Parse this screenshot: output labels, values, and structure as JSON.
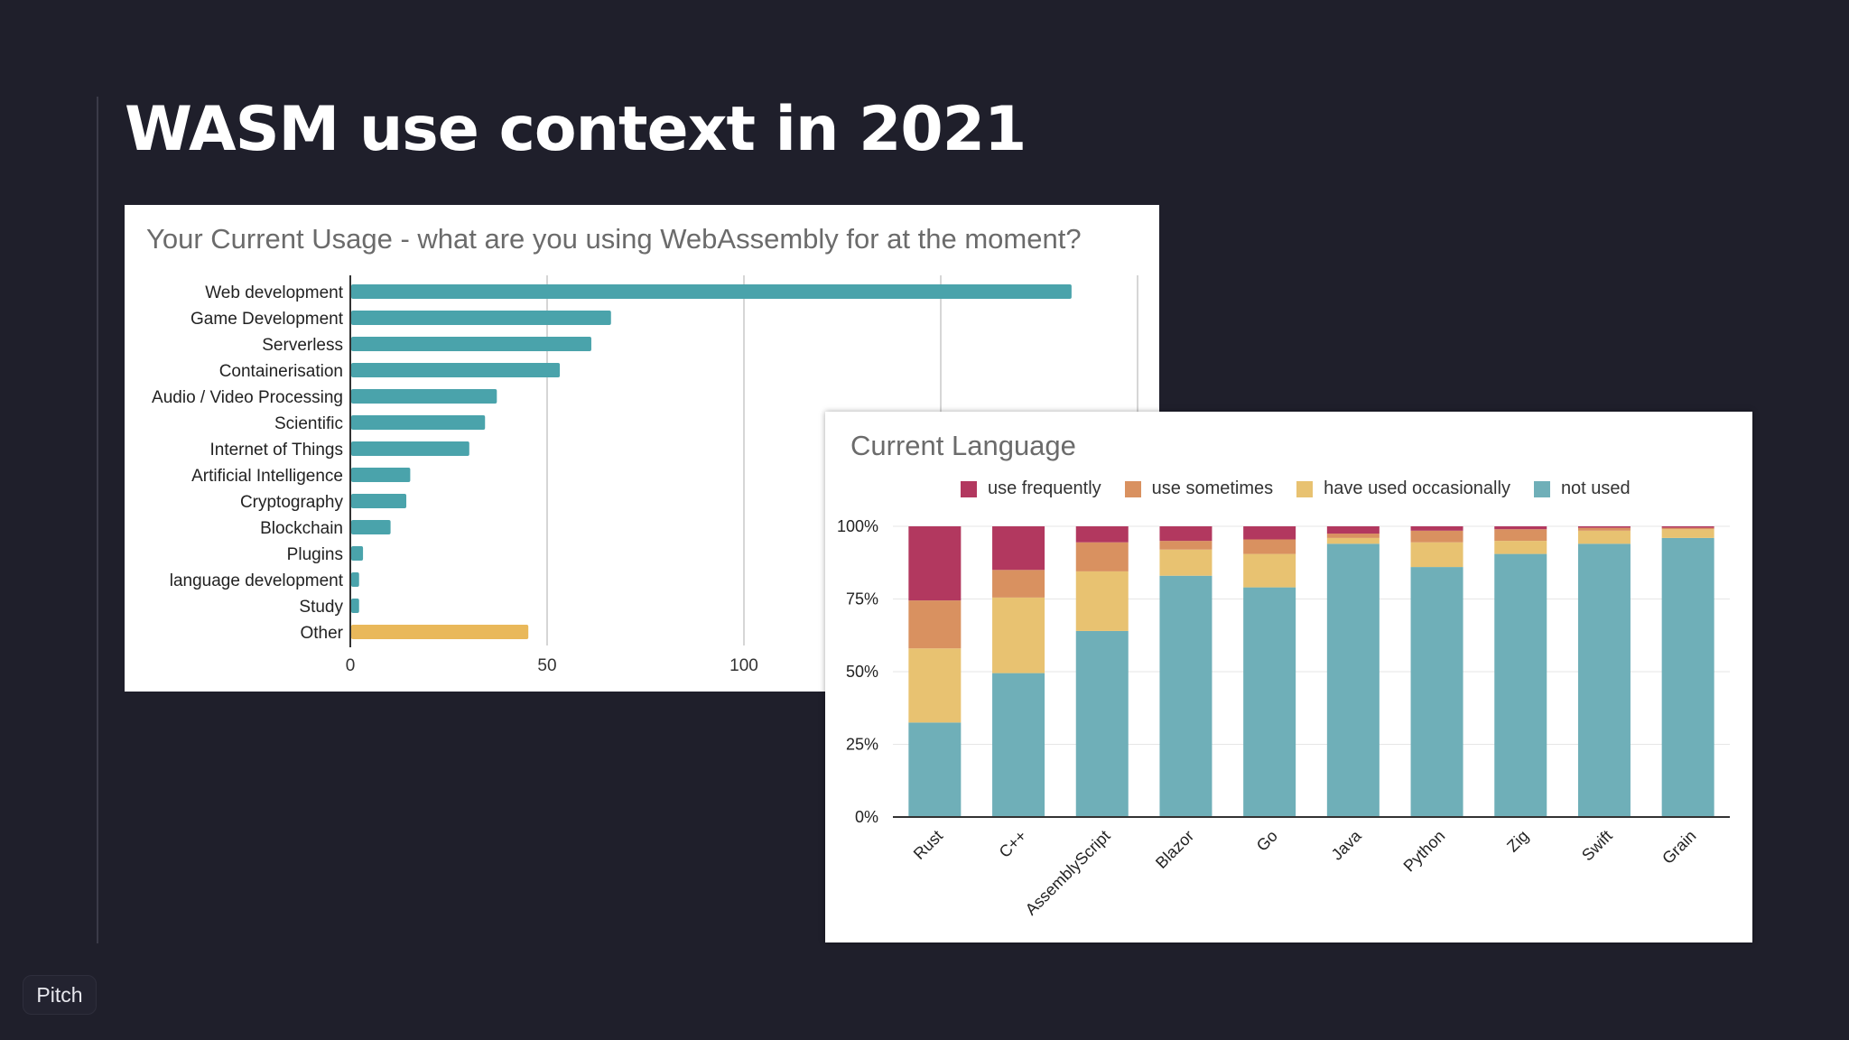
{
  "slide": {
    "title": "WASM use context in 2021",
    "logo": "Pitch"
  },
  "chart_data": [
    {
      "type": "bar",
      "orientation": "horizontal",
      "title": "Your Current Usage - what are you using WebAssembly for at the moment?",
      "categories": [
        "Web development",
        "Game Development",
        "Serverless",
        "Containerisation",
        "Audio / Video Processing",
        "Scientific",
        "Internet of Things",
        "Artificial Intelligence",
        "Cryptography",
        "Blockchain",
        "Plugins",
        "language development",
        "Study",
        "Other"
      ],
      "values": [
        183,
        66,
        61,
        53,
        37,
        34,
        30,
        15,
        14,
        10,
        3,
        2,
        2,
        45
      ],
      "bar_colors": [
        "#4aa3ab",
        "#4aa3ab",
        "#4aa3ab",
        "#4aa3ab",
        "#4aa3ab",
        "#4aa3ab",
        "#4aa3ab",
        "#4aa3ab",
        "#4aa3ab",
        "#4aa3ab",
        "#4aa3ab",
        "#4aa3ab",
        "#4aa3ab",
        "#e9b85a"
      ],
      "xticks": [
        0,
        50,
        100,
        150,
        200
      ],
      "xlim": [
        0,
        200
      ],
      "grid": true
    },
    {
      "type": "bar",
      "stacked": true,
      "title": "Current Language",
      "categories": [
        "Rust",
        "C++",
        "AssemblyScript",
        "Blazor",
        "Go",
        "Java",
        "Python",
        "Zig",
        "Swift",
        "Grain"
      ],
      "series": [
        {
          "name": "not used",
          "color": "#6fafb8",
          "values": [
            32.5,
            49.5,
            64,
            83,
            79,
            94,
            86,
            90.5,
            94,
            96
          ]
        },
        {
          "name": "have used occasionally",
          "color": "#e8c271",
          "values": [
            25.5,
            26,
            20.5,
            9,
            11.5,
            2,
            8.5,
            4.5,
            4.5,
            3
          ]
        },
        {
          "name": "use sometimes",
          "color": "#d99160",
          "values": [
            16.5,
            9.5,
            10,
            3,
            5,
            1.5,
            4,
            4,
            1,
            0.5
          ]
        },
        {
          "name": "use frequently",
          "color": "#b2385f",
          "values": [
            25.5,
            15,
            5.5,
            5,
            4.5,
            2.5,
            1.5,
            1,
            0.5,
            0.5
          ]
        }
      ],
      "legend_order": [
        "use frequently",
        "use sometimes",
        "have used occasionally",
        "not used"
      ],
      "yticks": [
        "0%",
        "25%",
        "50%",
        "75%",
        "100%"
      ],
      "ylim": [
        0,
        100
      ],
      "legend_position": "top",
      "grid": true
    }
  ]
}
